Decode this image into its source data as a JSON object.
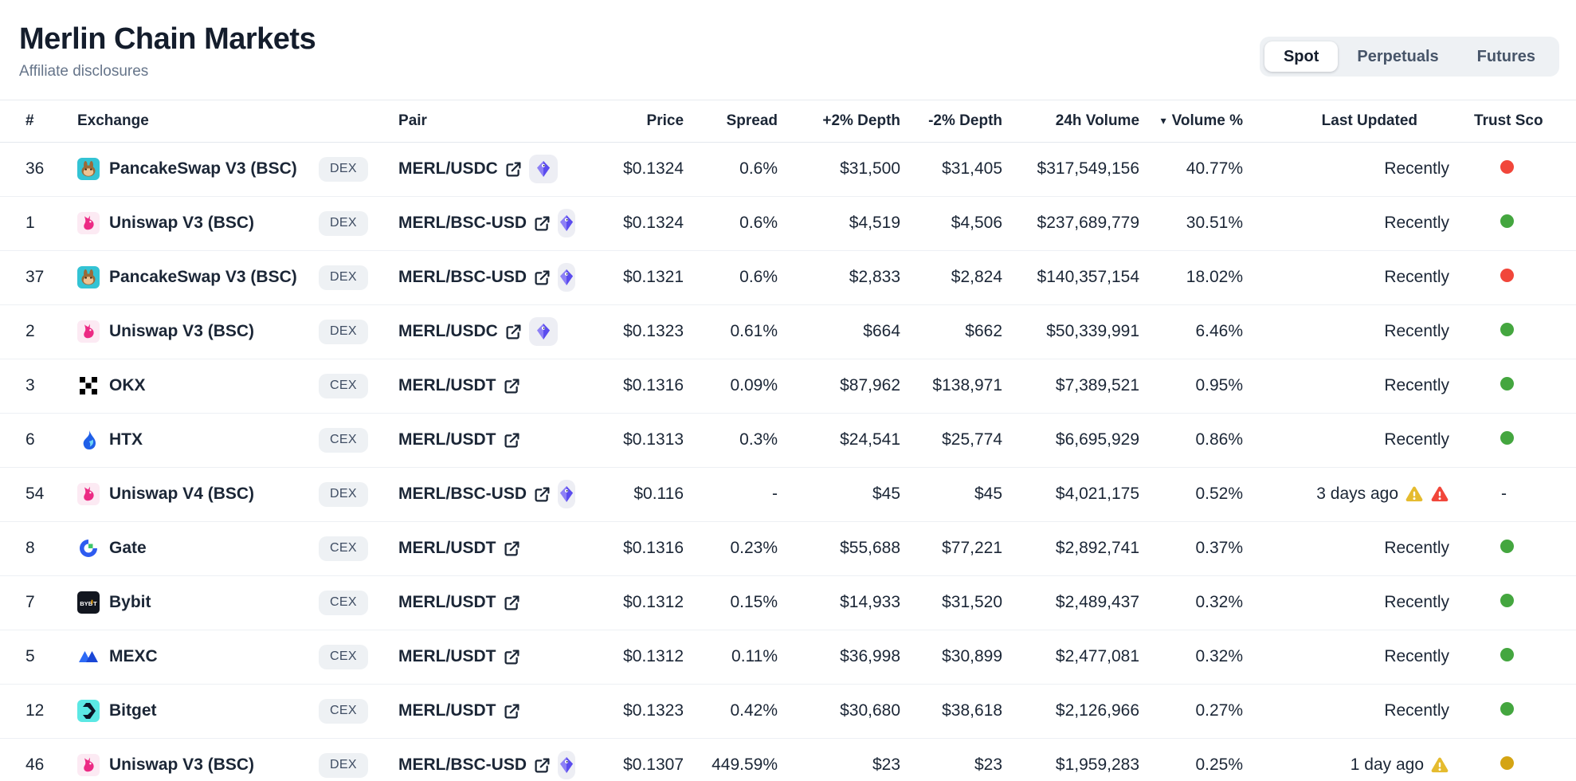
{
  "page": {
    "title": "Merlin Chain Markets",
    "subtitle_link": "Affiliate disclosures"
  },
  "tabs": {
    "items": [
      {
        "label": "Spot",
        "active": true
      },
      {
        "label": "Perpetuals",
        "active": false
      },
      {
        "label": "Futures",
        "active": false
      }
    ]
  },
  "colors": {
    "trust_green": "#44a63f",
    "trust_red": "#f1463a",
    "trust_yellow": "#d4a413",
    "warning_yellow": "#e5bb2e",
    "warning_red": "#f1463a",
    "accent_purple": "#6356ef"
  },
  "table": {
    "columns": {
      "rank": "#",
      "exchange": "Exchange",
      "pair": "Pair",
      "price": "Price",
      "spread": "Spread",
      "depth_plus": "+2% Depth",
      "depth_minus": "-2% Depth",
      "volume_24h": "24h Volume",
      "volume_pct": "Volume %",
      "last_updated": "Last Updated",
      "trust_score": "Trust Sco"
    },
    "sort": {
      "column": "Volume %",
      "direction": "desc",
      "caret": "▾"
    },
    "rows": [
      {
        "rank": "36",
        "exchange": "PancakeSwap V3 (BSC)",
        "exchange_icon": "pancakeswap",
        "type": "DEX",
        "pair": "MERL/USDC",
        "pair_badge": true,
        "price": "$0.1324",
        "spread": "0.6%",
        "depth_plus": "$31,500",
        "depth_minus": "$31,405",
        "volume_24h": "$317,549,156",
        "volume_pct": "40.77%",
        "last_updated": "Recently",
        "warnings": [],
        "trust": "red"
      },
      {
        "rank": "1",
        "exchange": "Uniswap V3 (BSC)",
        "exchange_icon": "uniswap",
        "type": "DEX",
        "pair": "MERL/BSC-USD",
        "pair_badge": true,
        "price": "$0.1324",
        "spread": "0.6%",
        "depth_plus": "$4,519",
        "depth_minus": "$4,506",
        "volume_24h": "$237,689,779",
        "volume_pct": "30.51%",
        "last_updated": "Recently",
        "warnings": [],
        "trust": "green"
      },
      {
        "rank": "37",
        "exchange": "PancakeSwap V3 (BSC)",
        "exchange_icon": "pancakeswap",
        "type": "DEX",
        "pair": "MERL/BSC-USD",
        "pair_badge": true,
        "price": "$0.1321",
        "spread": "0.6%",
        "depth_plus": "$2,833",
        "depth_minus": "$2,824",
        "volume_24h": "$140,357,154",
        "volume_pct": "18.02%",
        "last_updated": "Recently",
        "warnings": [],
        "trust": "red"
      },
      {
        "rank": "2",
        "exchange": "Uniswap V3 (BSC)",
        "exchange_icon": "uniswap",
        "type": "DEX",
        "pair": "MERL/USDC",
        "pair_badge": true,
        "price": "$0.1323",
        "spread": "0.61%",
        "depth_plus": "$664",
        "depth_minus": "$662",
        "volume_24h": "$50,339,991",
        "volume_pct": "6.46%",
        "last_updated": "Recently",
        "warnings": [],
        "trust": "green"
      },
      {
        "rank": "3",
        "exchange": "OKX",
        "exchange_icon": "okx",
        "type": "CEX",
        "pair": "MERL/USDT",
        "pair_badge": false,
        "price": "$0.1316",
        "spread": "0.09%",
        "depth_plus": "$87,962",
        "depth_minus": "$138,971",
        "volume_24h": "$7,389,521",
        "volume_pct": "0.95%",
        "last_updated": "Recently",
        "warnings": [],
        "trust": "green"
      },
      {
        "rank": "6",
        "exchange": "HTX",
        "exchange_icon": "htx",
        "type": "CEX",
        "pair": "MERL/USDT",
        "pair_badge": false,
        "price": "$0.1313",
        "spread": "0.3%",
        "depth_plus": "$24,541",
        "depth_minus": "$25,774",
        "volume_24h": "$6,695,929",
        "volume_pct": "0.86%",
        "last_updated": "Recently",
        "warnings": [],
        "trust": "green"
      },
      {
        "rank": "54",
        "exchange": "Uniswap V4 (BSC)",
        "exchange_icon": "uniswap",
        "type": "DEX",
        "pair": "MERL/BSC-USD",
        "pair_badge": true,
        "price": "$0.116",
        "spread": "-",
        "depth_plus": "$45",
        "depth_minus": "$45",
        "volume_24h": "$4,021,175",
        "volume_pct": "0.52%",
        "last_updated": "3 days ago",
        "warnings": [
          "yellow",
          "red"
        ],
        "trust": "-"
      },
      {
        "rank": "8",
        "exchange": "Gate",
        "exchange_icon": "gate",
        "type": "CEX",
        "pair": "MERL/USDT",
        "pair_badge": false,
        "price": "$0.1316",
        "spread": "0.23%",
        "depth_plus": "$55,688",
        "depth_minus": "$77,221",
        "volume_24h": "$2,892,741",
        "volume_pct": "0.37%",
        "last_updated": "Recently",
        "warnings": [],
        "trust": "green"
      },
      {
        "rank": "7",
        "exchange": "Bybit",
        "exchange_icon": "bybit",
        "type": "CEX",
        "pair": "MERL/USDT",
        "pair_badge": false,
        "price": "$0.1312",
        "spread": "0.15%",
        "depth_plus": "$14,933",
        "depth_minus": "$31,520",
        "volume_24h": "$2,489,437",
        "volume_pct": "0.32%",
        "last_updated": "Recently",
        "warnings": [],
        "trust": "green"
      },
      {
        "rank": "5",
        "exchange": "MEXC",
        "exchange_icon": "mexc",
        "type": "CEX",
        "pair": "MERL/USDT",
        "pair_badge": false,
        "price": "$0.1312",
        "spread": "0.11%",
        "depth_plus": "$36,998",
        "depth_minus": "$30,899",
        "volume_24h": "$2,477,081",
        "volume_pct": "0.32%",
        "last_updated": "Recently",
        "warnings": [],
        "trust": "green"
      },
      {
        "rank": "12",
        "exchange": "Bitget",
        "exchange_icon": "bitget",
        "type": "CEX",
        "pair": "MERL/USDT",
        "pair_badge": false,
        "price": "$0.1323",
        "spread": "0.42%",
        "depth_plus": "$30,680",
        "depth_minus": "$38,618",
        "volume_24h": "$2,126,966",
        "volume_pct": "0.27%",
        "last_updated": "Recently",
        "warnings": [],
        "trust": "green"
      },
      {
        "rank": "46",
        "exchange": "Uniswap V3 (BSC)",
        "exchange_icon": "uniswap",
        "type": "DEX",
        "pair": "MERL/BSC-USD",
        "pair_badge": true,
        "price": "$0.1307",
        "spread": "449.59%",
        "depth_plus": "$23",
        "depth_minus": "$23",
        "volume_24h": "$1,959,283",
        "volume_pct": "0.25%",
        "last_updated": "1 day ago",
        "warnings": [
          "yellow"
        ],
        "trust": "yellow"
      }
    ]
  }
}
